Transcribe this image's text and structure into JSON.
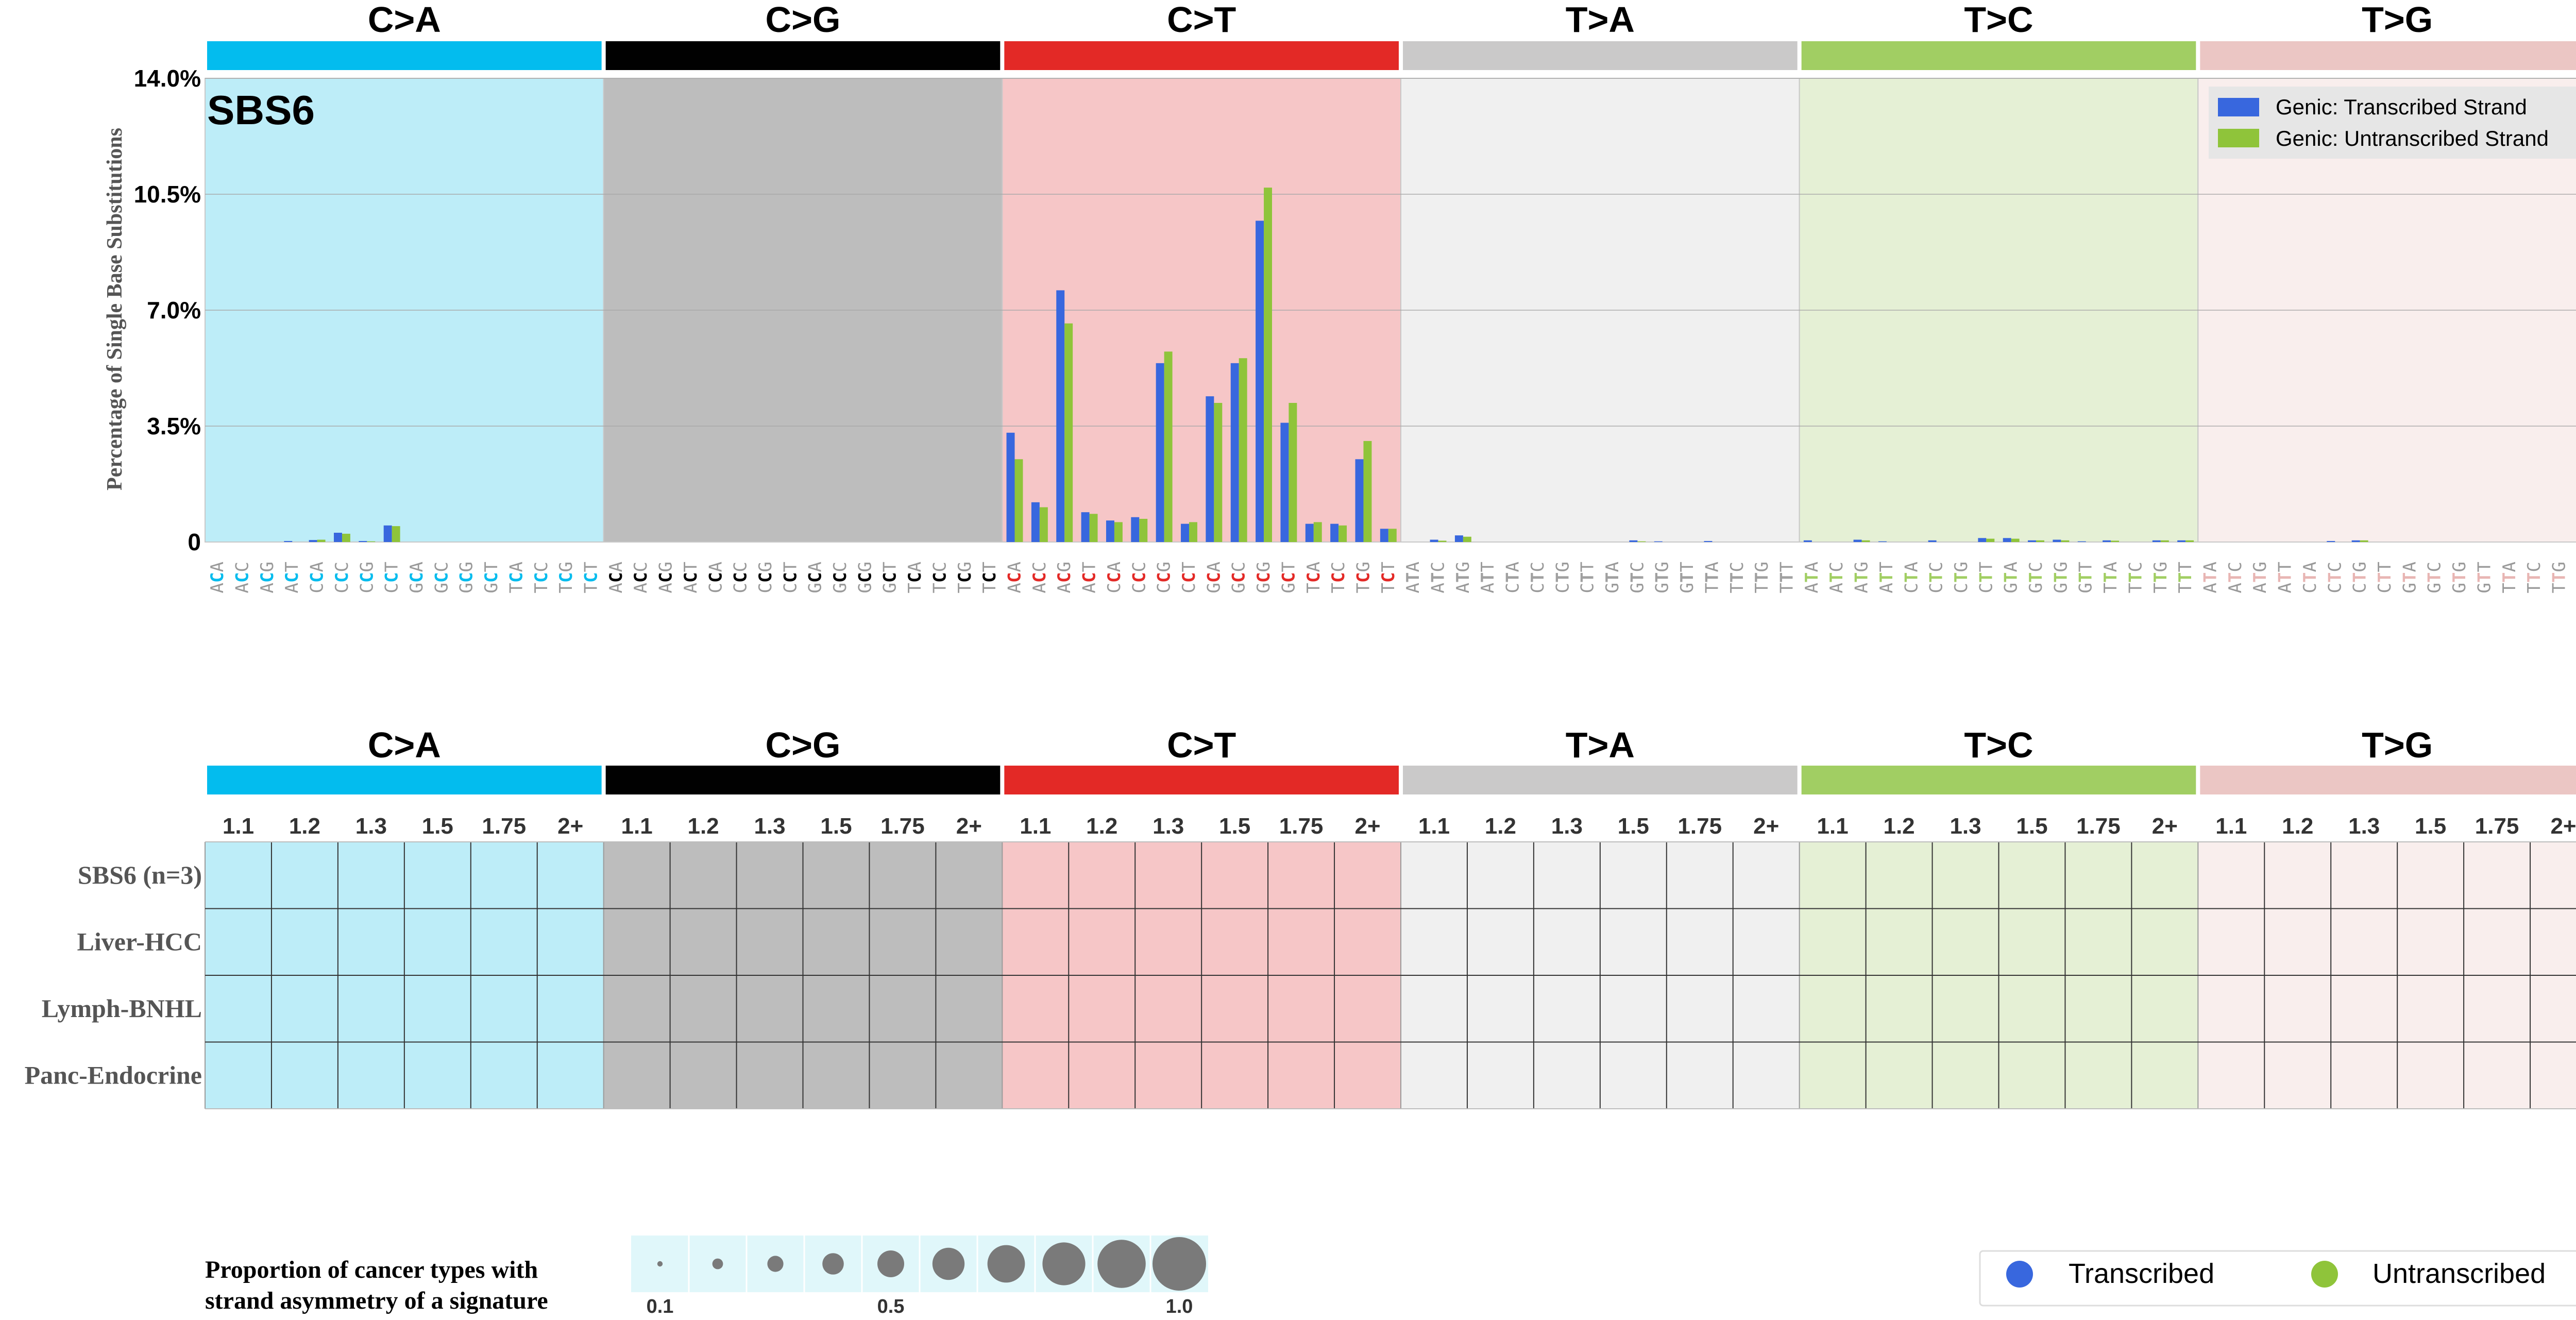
{
  "chart_data": [
    {
      "type": "bar",
      "title": "SBS6",
      "ylabel": "Percentage of Single Base Substitutions",
      "ylim": [
        0,
        14
      ],
      "yticks": [
        "0",
        "3.5%",
        "7.0%",
        "10.5%",
        "14.0%"
      ],
      "grid": true,
      "legend_position": "top-right",
      "mutation_types": [
        {
          "label": "C>A",
          "color": "#03BCEE",
          "panel_color": "#BDEDF8",
          "ref": "C",
          "ref_color": "#03BCEE"
        },
        {
          "label": "C>G",
          "color": "#010101",
          "panel_color": "#BDBDBD",
          "ref": "C",
          "ref_color": "#010101"
        },
        {
          "label": "C>T",
          "color": "#E32926",
          "panel_color": "#F6C6C7",
          "ref": "C",
          "ref_color": "#E32926"
        },
        {
          "label": "T>A",
          "color": "#CAC9C9",
          "panel_color": "#F0F0F0",
          "ref": "T",
          "ref_color": "#A0A0A0"
        },
        {
          "label": "T>C",
          "color": "#A1CE63",
          "panel_color": "#E5F0D5",
          "ref": "T",
          "ref_color": "#A1CE63"
        },
        {
          "label": "T>G",
          "color": "#EBC6C4",
          "panel_color": "#F9EEED",
          "ref": "T",
          "ref_color": "#E8B5B3"
        }
      ],
      "flanks": [
        [
          "A",
          "A"
        ],
        [
          "A",
          "C"
        ],
        [
          "A",
          "G"
        ],
        [
          "A",
          "T"
        ],
        [
          "C",
          "A"
        ],
        [
          "C",
          "C"
        ],
        [
          "C",
          "G"
        ],
        [
          "C",
          "T"
        ],
        [
          "G",
          "A"
        ],
        [
          "G",
          "C"
        ],
        [
          "G",
          "G"
        ],
        [
          "G",
          "T"
        ],
        [
          "T",
          "A"
        ],
        [
          "T",
          "C"
        ],
        [
          "T",
          "G"
        ],
        [
          "T",
          "T"
        ]
      ],
      "series": [
        {
          "name": "Genic: Transcribed Strand",
          "color": "#3867DE",
          "values": [
            0.0,
            0.0,
            0.0,
            0.03,
            0.06,
            0.28,
            0.03,
            0.5,
            0.0,
            0.0,
            0.0,
            0.0,
            0.0,
            0.0,
            0.0,
            0.0,
            0.0,
            0.0,
            0.0,
            0.0,
            0.0,
            0.0,
            0.0,
            0.0,
            0.0,
            0.0,
            0.0,
            0.0,
            0.0,
            0.0,
            0.0,
            0.0,
            3.3,
            1.2,
            7.6,
            0.9,
            0.65,
            0.75,
            5.4,
            0.55,
            4.4,
            5.4,
            9.7,
            3.6,
            0.55,
            0.55,
            2.5,
            0.4,
            0.0,
            0.07,
            0.2,
            0.0,
            0.0,
            0.0,
            0.0,
            0.0,
            0.0,
            0.05,
            0.02,
            0.0,
            0.03,
            0.0,
            0.0,
            0.0,
            0.05,
            0.0,
            0.07,
            0.02,
            0.0,
            0.05,
            0.0,
            0.12,
            0.12,
            0.05,
            0.07,
            0.02,
            0.05,
            0.0,
            0.05,
            0.05,
            0.0,
            0.0,
            0.0,
            0.0,
            0.0,
            0.03,
            0.05,
            0.0,
            0.0,
            0.0,
            0.0,
            0.0,
            0.0,
            0.0,
            0.0,
            0.0
          ]
        },
        {
          "name": "Genic: Untranscribed Strand",
          "color": "#8FC43A",
          "values": [
            0.0,
            0.0,
            0.0,
            0.0,
            0.07,
            0.25,
            0.02,
            0.48,
            0.0,
            0.0,
            0.0,
            0.0,
            0.0,
            0.0,
            0.0,
            0.0,
            0.0,
            0.0,
            0.0,
            0.0,
            0.0,
            0.0,
            0.0,
            0.0,
            0.0,
            0.0,
            0.0,
            0.0,
            0.0,
            0.0,
            0.0,
            0.0,
            2.5,
            1.05,
            6.6,
            0.85,
            0.6,
            0.7,
            5.75,
            0.6,
            4.2,
            5.55,
            10.7,
            4.2,
            0.6,
            0.5,
            3.05,
            0.4,
            0.0,
            0.04,
            0.16,
            0.0,
            0.0,
            0.0,
            0.0,
            0.0,
            0.0,
            0.02,
            0.0,
            0.0,
            0.0,
            0.0,
            0.0,
            0.0,
            0.0,
            0.0,
            0.05,
            0.0,
            0.0,
            0.0,
            0.0,
            0.1,
            0.1,
            0.05,
            0.05,
            0.0,
            0.04,
            0.0,
            0.05,
            0.05,
            0.0,
            0.0,
            0.0,
            0.0,
            0.0,
            0.0,
            0.05,
            0.0,
            0.0,
            0.0,
            0.0,
            0.0,
            0.0,
            0.0,
            0.0,
            0.0
          ]
        }
      ]
    },
    {
      "type": "heatmap",
      "column_labels": [
        "1.1",
        "1.2",
        "1.3",
        "1.5",
        "1.75",
        "2+"
      ],
      "row_labels": [
        "SBS6 (n=3)",
        "Liver-HCC",
        "Lymph-BNHL",
        "Panc-Endocrine"
      ],
      "mutation_types": [
        "C>A",
        "C>G",
        "C>T",
        "T>A",
        "T>C",
        "T>G"
      ]
    }
  ],
  "size_legend": {
    "title_line1": "Proportion of cancer types with",
    "title_line2": "strand asymmetry of a signature",
    "proportions": [
      0.1,
      0.2,
      0.3,
      0.4,
      0.5,
      0.6,
      0.7,
      0.8,
      0.9,
      1.0
    ],
    "labels": [
      "0.1",
      "0.5",
      "1.0"
    ],
    "bg_color": "#E0F7FA",
    "dot_color": "#7A7A7A"
  },
  "strand_legend": {
    "items": [
      {
        "label": "Transcribed",
        "color": "#3867DE"
      },
      {
        "label": "Untranscribed",
        "color": "#8FC43A"
      }
    ]
  }
}
